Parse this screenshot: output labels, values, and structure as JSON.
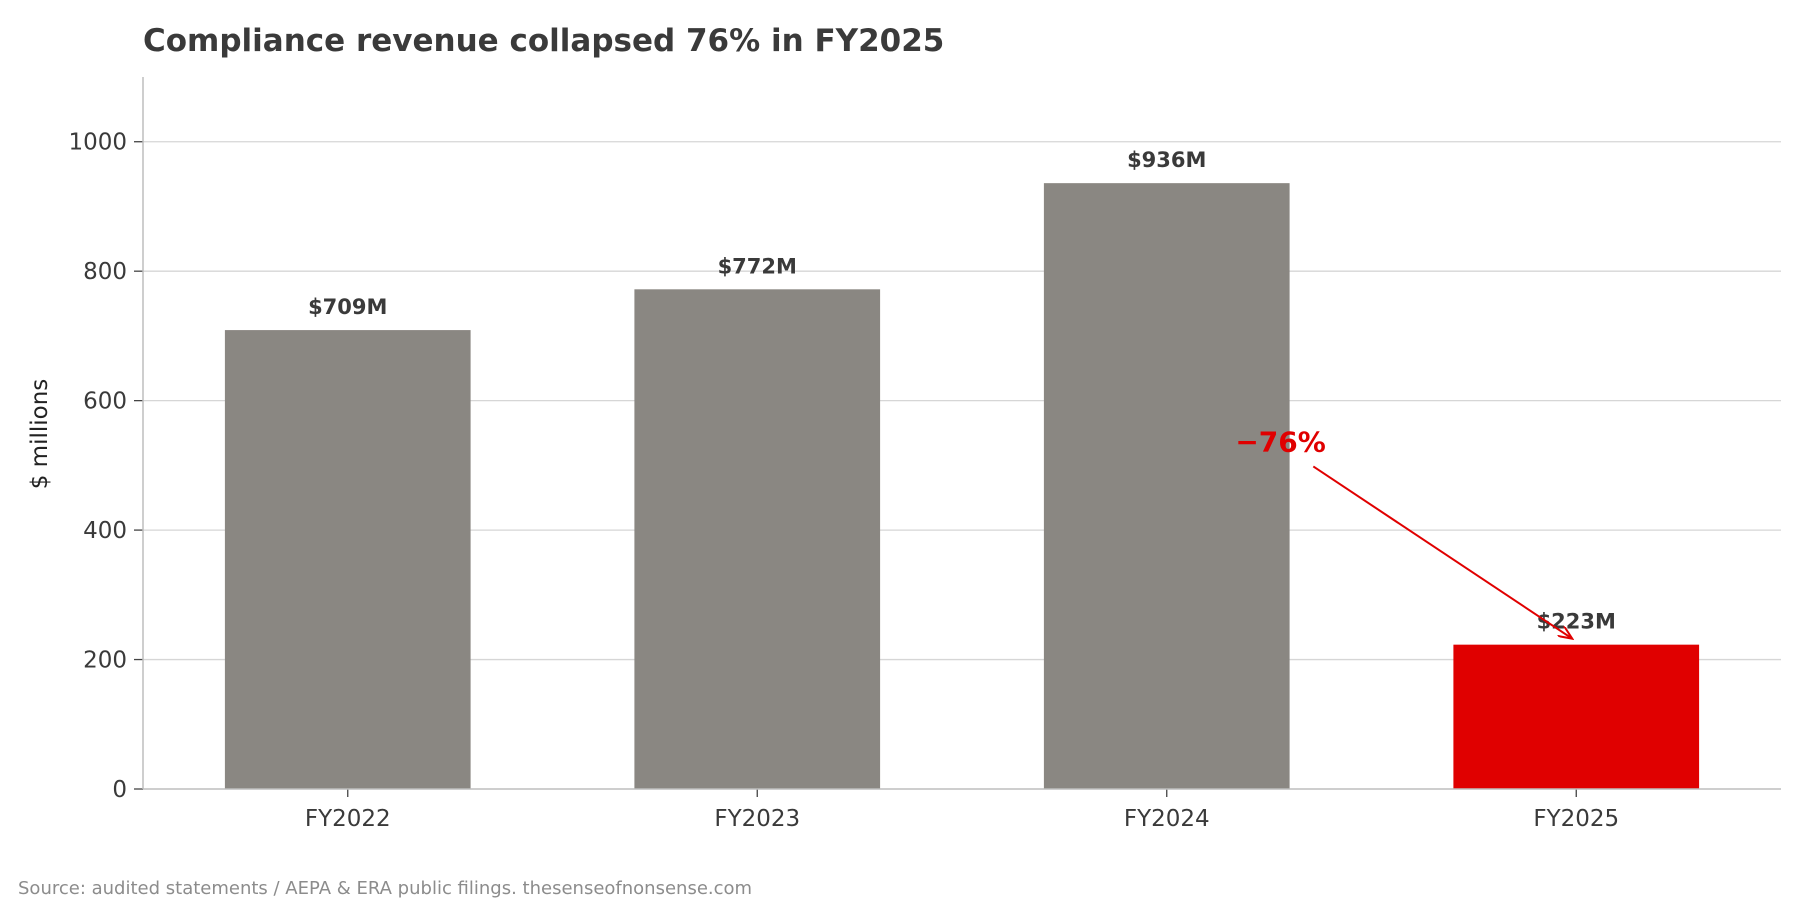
{
  "chart_data": {
    "type": "bar",
    "title": "Compliance revenue collapsed 76% in FY2025",
    "xlabel": "",
    "ylabel": "$ millions",
    "categories": [
      "FY2022",
      "FY2023",
      "FY2024",
      "FY2025"
    ],
    "values": [
      709,
      772,
      936,
      223
    ],
    "value_labels": [
      "$709M",
      "$772M",
      "$936M",
      "$223M"
    ],
    "ylim": [
      0,
      1100
    ],
    "yticks": [
      0,
      200,
      400,
      600,
      800,
      1000
    ],
    "grid": "horizontal",
    "legend": "none",
    "bar_colors": [
      "#8a8782",
      "#8a8782",
      "#8a8782",
      "#e00000"
    ],
    "annotation": {
      "text": "−76%",
      "color": "#e00000",
      "from_category": "FY2024",
      "to_category": "FY2025",
      "text_value": 520
    },
    "source": "Source: audited statements / AEPA & ERA public filings. thesenseofnonsense.com"
  },
  "colors": {
    "text": "#3a3a3a",
    "axis": "#bdbdbd",
    "grid": "#d6d6d6",
    "source": "#8c8c8c",
    "highlight": "#e00000"
  }
}
